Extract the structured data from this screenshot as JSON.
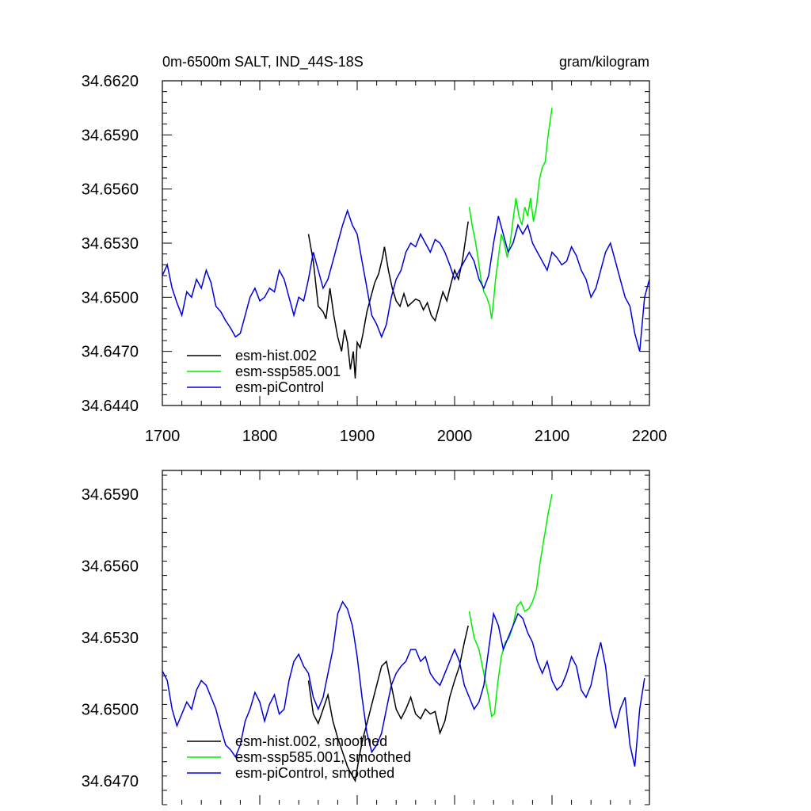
{
  "chart_data": [
    {
      "type": "line",
      "title": "0m-6500m SALT, IND_44S-18S",
      "units": "gram/kilogram",
      "xlim": [
        1700,
        2200
      ],
      "ylim": [
        34.644,
        34.662
      ],
      "x_ticks": [
        1700,
        1800,
        1900,
        2000,
        2100,
        2200
      ],
      "y_ticks": [
        "34.6440",
        "34.6470",
        "34.6500",
        "34.6530",
        "34.6560",
        "34.6590",
        "34.6620"
      ],
      "legend_position": "bottom-left",
      "grid": false,
      "series": [
        {
          "name": "esm-hist.002",
          "color": "#000000",
          "x": [
            1850,
            1855,
            1860,
            1865,
            1868,
            1872,
            1876,
            1880,
            1884,
            1887,
            1890,
            1893,
            1896,
            1898,
            1900,
            1903,
            1906,
            1910,
            1914,
            1918,
            1922,
            1926,
            1928,
            1932,
            1936,
            1940,
            1944,
            1948,
            1952,
            1956,
            1960,
            1964,
            1968,
            1972,
            1976,
            1980,
            1984,
            1988,
            1992,
            1996,
            2000,
            2004,
            2008,
            2012,
            2014
          ],
          "y": [
            34.6535,
            34.652,
            34.6495,
            34.6492,
            34.6488,
            34.6505,
            34.649,
            34.6478,
            34.647,
            34.6482,
            34.6475,
            34.646,
            34.647,
            34.6455,
            34.6475,
            34.6472,
            34.648,
            34.6492,
            34.65,
            34.6508,
            34.6513,
            34.6522,
            34.6528,
            34.6515,
            34.6505,
            34.6498,
            34.6495,
            34.6502,
            34.6495,
            34.6497,
            34.6499,
            34.6498,
            34.6493,
            34.6497,
            34.649,
            34.6487,
            34.6495,
            34.6503,
            34.6498,
            34.6507,
            34.6515,
            34.651,
            34.652,
            34.6535,
            34.6542
          ]
        },
        {
          "name": "esm-ssp585.001",
          "color": "#00ee00",
          "x": [
            2015,
            2018,
            2021,
            2024,
            2027,
            2030,
            2033,
            2036,
            2038,
            2040,
            2042,
            2045,
            2048,
            2051,
            2054,
            2057,
            2060,
            2063,
            2066,
            2069,
            2072,
            2075,
            2078,
            2081,
            2084,
            2087,
            2090,
            2093,
            2096,
            2100
          ],
          "y": [
            34.655,
            34.654,
            34.6532,
            34.6522,
            34.651,
            34.6503,
            34.65,
            34.6495,
            34.6488,
            34.6498,
            34.651,
            34.6522,
            34.6535,
            34.653,
            34.6522,
            34.653,
            34.6543,
            34.6555,
            34.6545,
            34.654,
            34.655,
            34.6545,
            34.6555,
            34.6542,
            34.655,
            34.6565,
            34.6572,
            34.6575,
            34.659,
            34.6605
          ]
        },
        {
          "name": "esm-piControl",
          "color": "#0000dd",
          "x": [
            1700,
            1705,
            1710,
            1715,
            1720,
            1725,
            1730,
            1735,
            1740,
            1745,
            1750,
            1755,
            1760,
            1765,
            1770,
            1775,
            1780,
            1785,
            1790,
            1795,
            1800,
            1805,
            1810,
            1815,
            1820,
            1825,
            1830,
            1835,
            1840,
            1845,
            1850,
            1855,
            1860,
            1865,
            1870,
            1875,
            1880,
            1885,
            1890,
            1895,
            1900,
            1905,
            1910,
            1915,
            1920,
            1925,
            1930,
            1935,
            1940,
            1945,
            1950,
            1955,
            1960,
            1965,
            1970,
            1975,
            1980,
            1985,
            1990,
            1995,
            2000,
            2005,
            2010,
            2015,
            2020,
            2025,
            2030,
            2035,
            2040,
            2045,
            2050,
            2055,
            2060,
            2065,
            2070,
            2075,
            2080,
            2085,
            2090,
            2095,
            2100,
            2105,
            2110,
            2115,
            2120,
            2125,
            2130,
            2135,
            2140,
            2145,
            2150,
            2155,
            2160,
            2165,
            2170,
            2175,
            2180,
            2185,
            2190,
            2195,
            2200
          ],
          "y": [
            34.6512,
            34.6518,
            34.6505,
            34.6497,
            34.649,
            34.6503,
            34.65,
            34.651,
            34.6505,
            34.6515,
            34.6508,
            34.6495,
            34.6492,
            34.6487,
            34.6483,
            34.6478,
            34.648,
            34.649,
            34.65,
            34.6505,
            34.6498,
            34.65,
            34.6505,
            34.6503,
            34.6515,
            34.651,
            34.65,
            34.649,
            34.65,
            34.6498,
            34.651,
            34.6525,
            34.6515,
            34.6505,
            34.651,
            34.652,
            34.653,
            34.654,
            34.6548,
            34.654,
            34.6535,
            34.652,
            34.6505,
            34.649,
            34.6485,
            34.6478,
            34.6485,
            34.65,
            34.651,
            34.6515,
            34.6525,
            34.653,
            34.6528,
            34.6535,
            34.653,
            34.6525,
            34.6532,
            34.653,
            34.6525,
            34.6518,
            34.651,
            34.6515,
            34.652,
            34.6525,
            34.652,
            34.651,
            34.6505,
            34.6512,
            34.653,
            34.6545,
            34.6535,
            34.6525,
            34.653,
            34.654,
            34.6535,
            34.654,
            34.653,
            34.6525,
            34.652,
            34.6515,
            34.6525,
            34.6522,
            34.6518,
            34.652,
            34.6528,
            34.6523,
            34.6515,
            34.651,
            34.65,
            34.6505,
            34.6515,
            34.6525,
            34.653,
            34.652,
            34.651,
            34.65,
            34.6495,
            34.648,
            34.647,
            34.65,
            34.651
          ]
        }
      ]
    },
    {
      "type": "line",
      "title": "",
      "xlim": [
        1700,
        2200
      ],
      "ylim": [
        34.646,
        34.66
      ],
      "y_ticks": [
        "34.6470",
        "34.6500",
        "34.6530",
        "34.6560",
        "34.6590"
      ],
      "legend_position": "bottom-left",
      "grid": false,
      "series": [
        {
          "name": "esm-hist.002, smoothed",
          "color": "#000000",
          "x": [
            1850,
            1855,
            1860,
            1865,
            1870,
            1875,
            1880,
            1885,
            1890,
            1895,
            1898,
            1900,
            1903,
            1906,
            1910,
            1915,
            1920,
            1925,
            1930,
            1935,
            1940,
            1945,
            1950,
            1955,
            1960,
            1965,
            1970,
            1975,
            1980,
            1985,
            1990,
            1995,
            2000,
            2005,
            2010,
            2014
          ],
          "y": [
            34.6512,
            34.6498,
            34.6494,
            34.65,
            34.6506,
            34.6495,
            34.6488,
            34.6482,
            34.6476,
            34.6472,
            34.647,
            34.6475,
            34.6482,
            34.6488,
            34.6494,
            34.6502,
            34.651,
            34.6518,
            34.652,
            34.651,
            34.65,
            34.6496,
            34.65,
            34.6505,
            34.6498,
            34.6496,
            34.65,
            34.6498,
            34.6499,
            34.649,
            34.6495,
            34.6505,
            34.6512,
            34.6518,
            34.6528,
            34.6535
          ]
        },
        {
          "name": "esm-ssp585.001, smoothed",
          "color": "#00ee00",
          "x": [
            2015,
            2020,
            2025,
            2030,
            2035,
            2038,
            2041,
            2044,
            2048,
            2052,
            2056,
            2060,
            2064,
            2068,
            2072,
            2076,
            2080,
            2084,
            2088,
            2092,
            2096,
            2100
          ],
          "y": [
            34.6541,
            34.653,
            34.6525,
            34.6515,
            34.6505,
            34.6497,
            34.6498,
            34.651,
            34.6522,
            34.6528,
            34.653,
            34.6535,
            34.6543,
            34.6545,
            34.6541,
            34.6542,
            34.6545,
            34.655,
            34.6562,
            34.6572,
            34.6582,
            34.659
          ]
        },
        {
          "name": "esm-piControl, smoothed",
          "color": "#0000dd",
          "x": [
            1700,
            1705,
            1710,
            1715,
            1720,
            1725,
            1730,
            1735,
            1740,
            1745,
            1750,
            1755,
            1760,
            1765,
            1770,
            1775,
            1780,
            1785,
            1790,
            1795,
            1800,
            1805,
            1810,
            1815,
            1820,
            1825,
            1830,
            1835,
            1840,
            1845,
            1850,
            1855,
            1860,
            1865,
            1870,
            1875,
            1880,
            1885,
            1890,
            1895,
            1900,
            1905,
            1910,
            1915,
            1920,
            1925,
            1930,
            1935,
            1940,
            1945,
            1950,
            1955,
            1960,
            1965,
            1970,
            1975,
            1980,
            1985,
            1990,
            1995,
            2000,
            2005,
            2010,
            2015,
            2020,
            2025,
            2030,
            2035,
            2040,
            2045,
            2050,
            2055,
            2060,
            2065,
            2070,
            2075,
            2080,
            2085,
            2090,
            2095,
            2100,
            2105,
            2110,
            2115,
            2120,
            2125,
            2130,
            2135,
            2140,
            2145,
            2150,
            2155,
            2160,
            2165,
            2170,
            2175,
            2180,
            2185,
            2190,
            2195
          ],
          "y": [
            34.6516,
            34.6512,
            34.65,
            34.6493,
            34.6498,
            34.6503,
            34.65,
            34.6508,
            34.6512,
            34.651,
            34.6505,
            34.65,
            34.6492,
            34.6485,
            34.6483,
            34.648,
            34.6485,
            34.6495,
            34.65,
            34.6507,
            34.6503,
            34.6495,
            34.6502,
            34.6506,
            34.6498,
            34.65,
            34.6512,
            34.652,
            34.6523,
            34.6518,
            34.6515,
            34.6505,
            34.65,
            34.6505,
            34.6515,
            34.6525,
            34.654,
            34.6545,
            34.6542,
            34.6535,
            34.6522,
            34.6505,
            34.649,
            34.6482,
            34.6485,
            34.649,
            34.65,
            34.651,
            34.6515,
            34.6518,
            34.652,
            34.6525,
            34.6525,
            34.652,
            34.6522,
            34.6515,
            34.6512,
            34.651,
            34.6515,
            34.652,
            34.6525,
            34.652,
            34.651,
            34.6505,
            34.65,
            34.6503,
            34.651,
            34.6525,
            34.654,
            34.6535,
            34.6525,
            34.653,
            34.6535,
            34.654,
            34.6538,
            34.6532,
            34.6528,
            34.652,
            34.6515,
            34.652,
            34.6512,
            34.6508,
            34.651,
            34.6515,
            34.6522,
            34.6518,
            34.6508,
            34.6505,
            34.651,
            34.652,
            34.6528,
            34.6518,
            34.65,
            34.6492,
            34.65,
            34.6505,
            34.6485,
            34.6476,
            34.65,
            34.6513
          ]
        }
      ]
    }
  ]
}
